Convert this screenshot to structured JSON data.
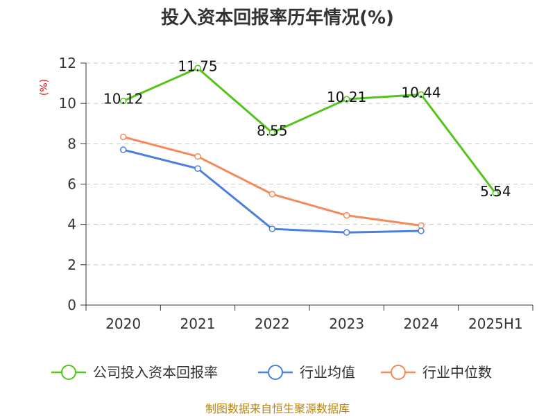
{
  "chart_data": {
    "type": "line",
    "title": "投入资本回报率历年情况(%)",
    "ylabel": "(%)",
    "xlabel": "",
    "categories": [
      "2020",
      "2021",
      "2022",
      "2023",
      "2024",
      "2025H1"
    ],
    "ylim": [
      0,
      12
    ],
    "yticks": [
      0,
      2,
      4,
      6,
      8,
      10,
      12
    ],
    "grid": "horizontal-dashed",
    "legend_position": "bottom",
    "series": [
      {
        "name": "公司投入资本回报率",
        "color": "#52c41a",
        "values": [
          10.12,
          11.75,
          8.55,
          10.21,
          10.44,
          5.54
        ],
        "labels": [
          "10.12",
          "11.75",
          "8.55",
          "10.21",
          "10.44",
          "5.54"
        ]
      },
      {
        "name": "行业均值",
        "color": "#4a7fdc",
        "values": [
          7.7,
          6.77,
          3.78,
          3.6,
          3.68,
          null
        ]
      },
      {
        "name": "行业中位数",
        "color": "#f5895a",
        "values": [
          8.34,
          7.37,
          5.5,
          4.45,
          3.94,
          null
        ]
      }
    ]
  },
  "source": "制图数据来自恒生聚源数据库"
}
